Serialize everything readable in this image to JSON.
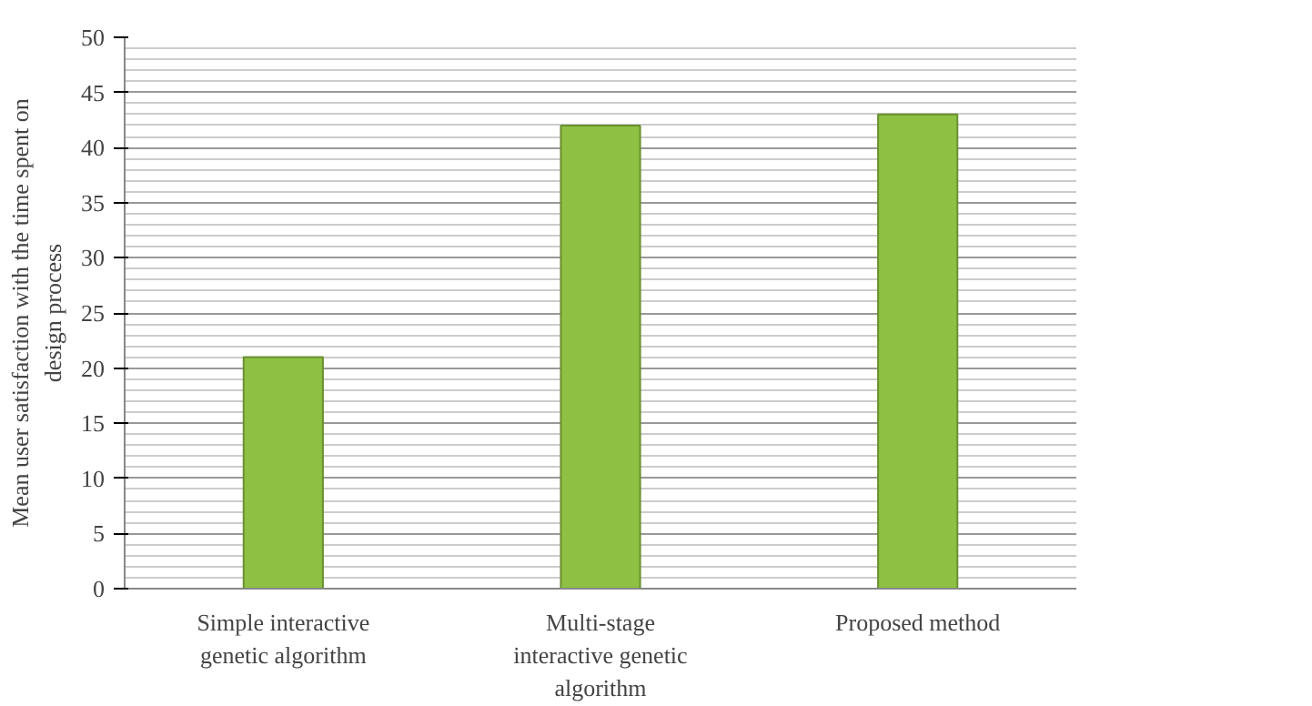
{
  "chart_data": {
    "type": "bar",
    "ylabel": "Mean user satisfaction with the time spent on design process",
    "categories": [
      "Simple interactive genetic algorithm",
      "Multi-stage interactive genetic algorithm",
      "Proposed method"
    ],
    "values": [
      21,
      42,
      43
    ],
    "color": "#8dc043",
    "ylim": [
      0,
      50
    ],
    "yticks": [
      0,
      5,
      10,
      15,
      20,
      25,
      30,
      35,
      40,
      45,
      50
    ],
    "grid": "y"
  }
}
